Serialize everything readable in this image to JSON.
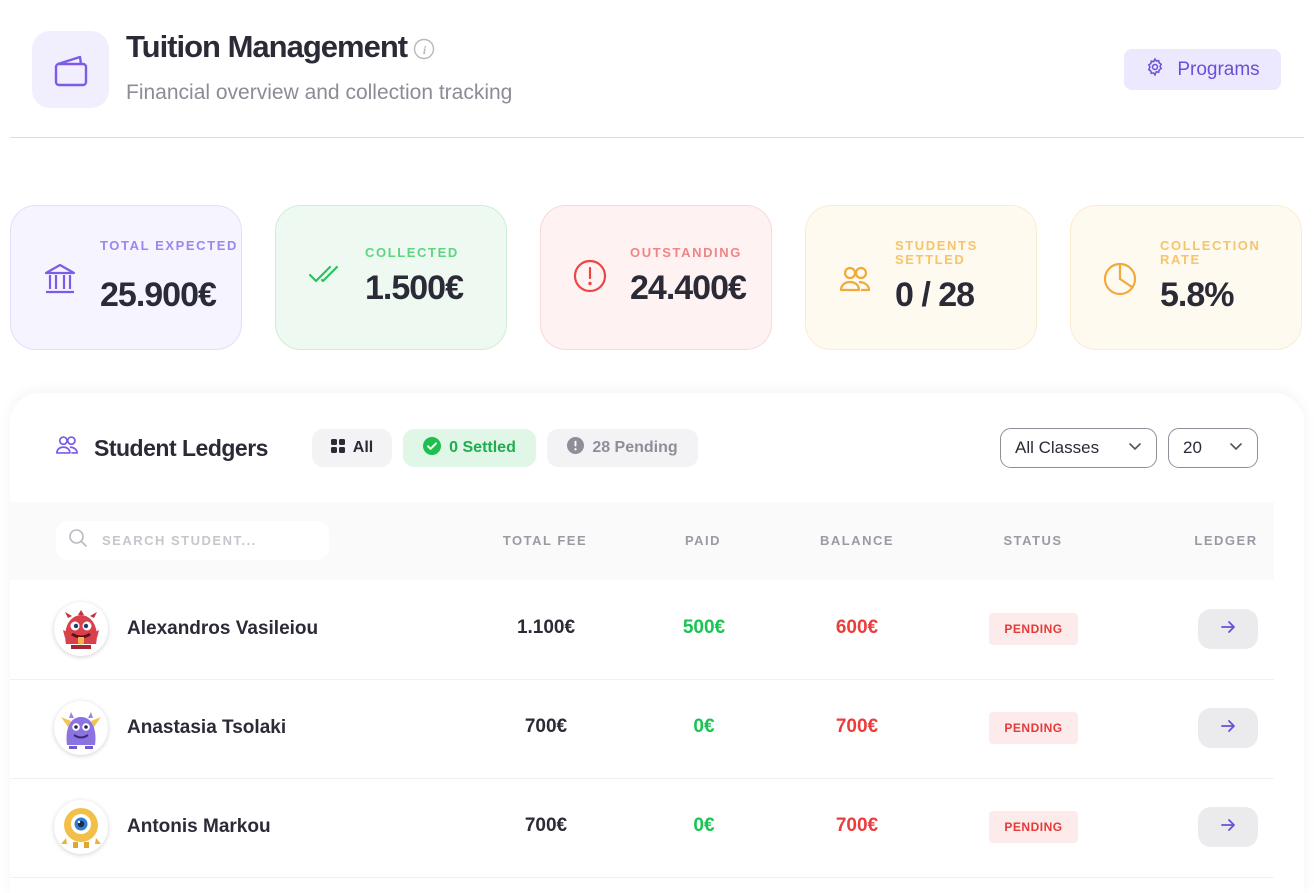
{
  "header": {
    "title": "Tuition Management",
    "subtitle": "Financial overview and collection tracking",
    "programs_label": "Programs"
  },
  "stats": [
    {
      "label": "TOTAL EXPECTED",
      "value": "25.900€",
      "icon": "bank-icon",
      "color": "#7c5ce6"
    },
    {
      "label": "COLLECTED",
      "value": "1.500€",
      "icon": "double-check-icon",
      "color": "#2bc25e"
    },
    {
      "label": "OUTSTANDING",
      "value": "24.400€",
      "icon": "alert-circle-icon",
      "color": "#ee5555"
    },
    {
      "label": "STUDENTS SETTLED",
      "value": "0 / 28",
      "icon": "users-icon",
      "color": "#f2a93b"
    },
    {
      "label": "COLLECTION RATE",
      "value": "5.8%",
      "icon": "pie-chart-icon",
      "color": "#f2a93b"
    }
  ],
  "ledger": {
    "title": "Student Ledgers",
    "filters": {
      "all": "All",
      "settled": "0 Settled",
      "pending": "28 Pending"
    },
    "class_select": "All Classes",
    "page_size": "20",
    "search_placeholder": "SEARCH STUDENT...",
    "columns": {
      "fee": "TOTAL FEE",
      "paid": "PAID",
      "balance": "BALANCE",
      "status": "STATUS",
      "ledger": "LEDGER"
    },
    "rows": [
      {
        "name": "Alexandros Vasileiou",
        "fee": "1.100€",
        "paid": "500€",
        "balance": "600€",
        "status": "PENDING",
        "avatar": "red-monster-avatar"
      },
      {
        "name": "Anastasia Tsolaki",
        "fee": "700€",
        "paid": "0€",
        "balance": "700€",
        "status": "PENDING",
        "avatar": "purple-monster-avatar"
      },
      {
        "name": "Antonis Markou",
        "fee": "700€",
        "paid": "0€",
        "balance": "700€",
        "status": "PENDING",
        "avatar": "yellow-cyclops-avatar"
      }
    ]
  }
}
